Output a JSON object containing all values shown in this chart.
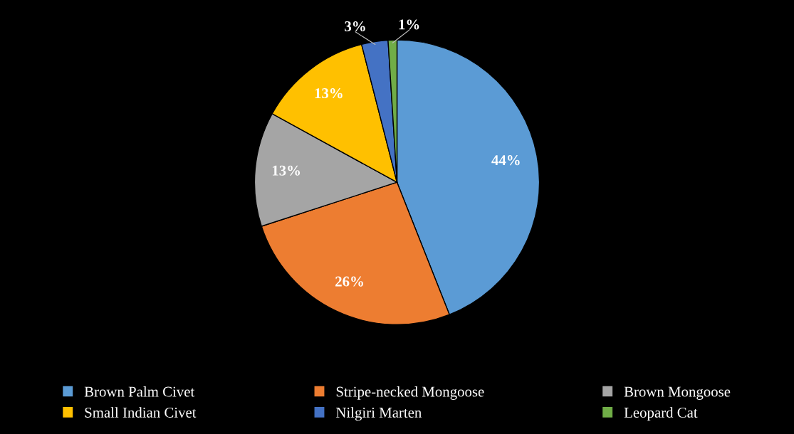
{
  "chart_data": {
    "type": "pie",
    "categories": [
      "Brown Palm Civet",
      "Stripe-necked Mongoose",
      "Brown Mongoose",
      "Small Indian Civet",
      "Nilgiri Marten",
      "Leopard Cat"
    ],
    "values": [
      44,
      26,
      13,
      13,
      3,
      1
    ],
    "colors": [
      "#5b9bd5",
      "#ed7d31",
      "#a5a5a5",
      "#ffc000",
      "#4472c4",
      "#70ad47"
    ],
    "value_labels": [
      "44%",
      "26%",
      "13%",
      "13%",
      "3%",
      "1%"
    ],
    "legend": "bottom"
  }
}
